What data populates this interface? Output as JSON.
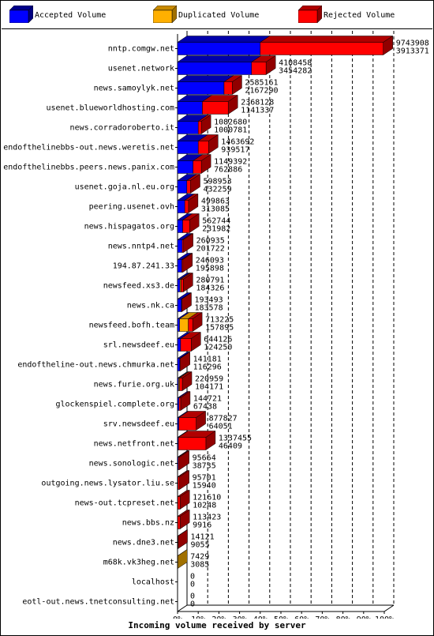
{
  "chart_data": {
    "type": "bar",
    "orientation": "horizontal",
    "stacked": true,
    "xlabel": "Incoming volume received by server",
    "xlim": [
      0,
      100
    ],
    "x_ticks": [
      "0%",
      "10%",
      "20%",
      "30%",
      "40%",
      "50%",
      "60%",
      "70%",
      "80%",
      "90%",
      "100%"
    ],
    "series": [
      {
        "name": "Accepted Volume",
        "color": "#0000ff"
      },
      {
        "name": "Duplicated Volume",
        "color": "#ffb000"
      },
      {
        "name": "Rejected Volume",
        "color": "#ff0000"
      }
    ],
    "rows": [
      {
        "server": "nntp.comgw.net",
        "total": "9743908",
        "rejected": "3913371",
        "accepted_pct": 40.0,
        "duplicated_pct": 0.0,
        "rejected_pct": 59.5
      },
      {
        "server": "usenet.network",
        "total": "4108458",
        "rejected": "3454282",
        "accepted_pct": 35.8,
        "duplicated_pct": 0.0,
        "rejected_pct": 7.0
      },
      {
        "server": "news.samoylyk.net",
        "total": "2585161",
        "rejected": "2167290",
        "accepted_pct": 22.5,
        "duplicated_pct": 0.0,
        "rejected_pct": 4.0
      },
      {
        "server": "usenet.blueworldhosting.com",
        "total": "2368128",
        "rejected": "1141337",
        "accepted_pct": 12.0,
        "duplicated_pct": 0.0,
        "rejected_pct": 12.5
      },
      {
        "server": "news.corradoroberto.it",
        "total": "1082680",
        "rejected": "1000781",
        "accepted_pct": 10.0,
        "duplicated_pct": 0.0,
        "rejected_pct": 1.5
      },
      {
        "server": "endofthelinebbs-out.news.weretis.net",
        "total": "1463692",
        "rejected": "939517",
        "accepted_pct": 10.0,
        "duplicated_pct": 0.0,
        "rejected_pct": 5.0
      },
      {
        "server": "endofthelinebbs.peers.news.panix.com",
        "total": "1149392",
        "rejected": "762886",
        "accepted_pct": 7.5,
        "duplicated_pct": 0.0,
        "rejected_pct": 4.0
      },
      {
        "server": "usenet.goja.nl.eu.org",
        "total": "598953",
        "rejected": "432259",
        "accepted_pct": 4.5,
        "duplicated_pct": 0.0,
        "rejected_pct": 1.8
      },
      {
        "server": "peering.usenet.ovh",
        "total": "499863",
        "rejected": "313085",
        "accepted_pct": 3.5,
        "duplicated_pct": 0.0,
        "rejected_pct": 1.8
      },
      {
        "server": "news.hispagatos.org",
        "total": "562744",
        "rejected": "231982",
        "accepted_pct": 2.5,
        "duplicated_pct": 0.0,
        "rejected_pct": 3.3
      },
      {
        "server": "news.nntp4.net",
        "total": "260935",
        "rejected": "201722",
        "accepted_pct": 2.3,
        "duplicated_pct": 0.0,
        "rejected_pct": 0.6
      },
      {
        "server": "194.87.241.33",
        "total": "246093",
        "rejected": "195898",
        "accepted_pct": 2.1,
        "duplicated_pct": 0.0,
        "rejected_pct": 0.5
      },
      {
        "server": "newsfeed.xs3.de",
        "total": "280791",
        "rejected": "184326",
        "accepted_pct": 1.2,
        "duplicated_pct": 0.5,
        "rejected_pct": 1.1
      },
      {
        "server": "news.nk.ca",
        "total": "193493",
        "rejected": "183578",
        "accepted_pct": 1.9,
        "duplicated_pct": 0.0,
        "rejected_pct": 0.2
      },
      {
        "server": "newsfeed.bofh.team",
        "total": "713225",
        "rejected": "157895",
        "accepted_pct": 1.0,
        "duplicated_pct": 4.2,
        "rejected_pct": 2.1
      },
      {
        "server": "srl.newsdeef.eu",
        "total": "644126",
        "rejected": "124250",
        "accepted_pct": 1.5,
        "duplicated_pct": 0.0,
        "rejected_pct": 5.1
      },
      {
        "server": "endoftheline-out.news.chmurka.net",
        "total": "141181",
        "rejected": "116296",
        "accepted_pct": 1.1,
        "duplicated_pct": 0.0,
        "rejected_pct": 0.3
      },
      {
        "server": "news.furie.org.uk",
        "total": "220959",
        "rejected": "104171",
        "accepted_pct": 0.5,
        "duplicated_pct": 0.5,
        "rejected_pct": 1.3
      },
      {
        "server": "glockenspiel.complete.org",
        "total": "144721",
        "rejected": "67438",
        "accepted_pct": 0.7,
        "duplicated_pct": 0.0,
        "rejected_pct": 0.8
      },
      {
        "server": "srv.newsdeef.eu",
        "total": "877827",
        "rejected": "64051",
        "accepted_pct": 0.6,
        "duplicated_pct": 0.0,
        "rejected_pct": 8.4
      },
      {
        "server": "news.netfront.net",
        "total": "1337455",
        "rejected": "46409",
        "accepted_pct": 0.4,
        "duplicated_pct": 0.0,
        "rejected_pct": 13.3
      },
      {
        "server": "news.sonologic.net",
        "total": "95664",
        "rejected": "38735",
        "accepted_pct": 0.4,
        "duplicated_pct": 0.0,
        "rejected_pct": 0.6
      },
      {
        "server": "outgoing.news.lysator.liu.se",
        "total": "95701",
        "rejected": "15940",
        "accepted_pct": 0.2,
        "duplicated_pct": 0.0,
        "rejected_pct": 0.8
      },
      {
        "server": "news-out.tcpreset.net",
        "total": "121610",
        "rejected": "10248",
        "accepted_pct": 0.1,
        "duplicated_pct": 0.0,
        "rejected_pct": 1.1
      },
      {
        "server": "news.bbs.nz",
        "total": "113423",
        "rejected": "9916",
        "accepted_pct": 0.1,
        "duplicated_pct": 0.0,
        "rejected_pct": 1.1
      },
      {
        "server": "news.dne3.net",
        "total": "14121",
        "rejected": "9055",
        "accepted_pct": 0.1,
        "duplicated_pct": 0.0,
        "rejected_pct": 0.1
      },
      {
        "server": "m68k.vk3heg.net",
        "total": "7429",
        "rejected": "3085",
        "accepted_pct": 0.0,
        "duplicated_pct": 0.1,
        "rejected_pct": 0.0
      },
      {
        "server": "localhost",
        "total": "0",
        "rejected": "0",
        "accepted_pct": 0,
        "duplicated_pct": 0,
        "rejected_pct": 0
      },
      {
        "server": "eotl-out.news.tnetconsulting.net",
        "total": "0",
        "rejected": "0",
        "accepted_pct": 0,
        "duplicated_pct": 0,
        "rejected_pct": 0
      }
    ]
  }
}
